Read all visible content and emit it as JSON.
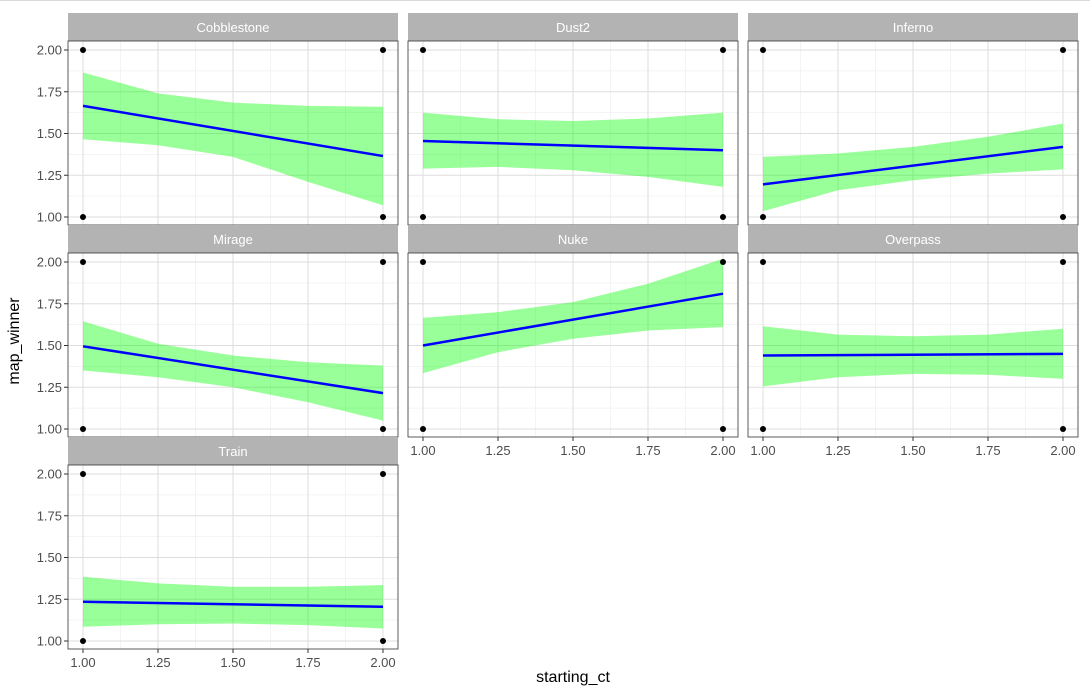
{
  "chart_data": {
    "type": "line",
    "facet_by": "map",
    "xlabel": "starting_ct",
    "ylabel": "map_winner",
    "xlim": [
      1.0,
      2.0
    ],
    "ylim": [
      1.0,
      2.0
    ],
    "x_ticks": [
      "1.00",
      "1.25",
      "1.50",
      "1.75",
      "2.00"
    ],
    "y_ticks": [
      "1.00",
      "1.25",
      "1.50",
      "1.75",
      "2.00"
    ],
    "grid": true,
    "colors": {
      "fit_line": "#0000ff",
      "ribbon": "#00ff00",
      "points": "#000000",
      "strip_bg": "#b3b3b3",
      "strip_text": "#ffffff"
    },
    "panels": [
      {
        "name": "Cobblestone",
        "line": {
          "x": [
            1.0,
            2.0
          ],
          "y": [
            1.665,
            1.365
          ]
        },
        "ribbon": {
          "x": [
            1.0,
            1.25,
            1.5,
            1.75,
            2.0
          ],
          "upper": [
            1.865,
            1.74,
            1.685,
            1.665,
            1.66
          ],
          "lower": [
            1.465,
            1.43,
            1.36,
            1.21,
            1.07
          ]
        },
        "points": [
          [
            1,
            1
          ],
          [
            1,
            2
          ],
          [
            2,
            1
          ],
          [
            2,
            2
          ]
        ]
      },
      {
        "name": "Dust2",
        "line": {
          "x": [
            1.0,
            2.0
          ],
          "y": [
            1.455,
            1.4
          ]
        },
        "ribbon": {
          "x": [
            1.0,
            1.25,
            1.5,
            1.75,
            2.0
          ],
          "upper": [
            1.625,
            1.585,
            1.575,
            1.59,
            1.625
          ],
          "lower": [
            1.29,
            1.3,
            1.28,
            1.24,
            1.18
          ]
        },
        "points": [
          [
            1,
            1
          ],
          [
            1,
            2
          ],
          [
            2,
            1
          ],
          [
            2,
            2
          ]
        ]
      },
      {
        "name": "Inferno",
        "line": {
          "x": [
            1.0,
            2.0
          ],
          "y": [
            1.195,
            1.42
          ]
        },
        "ribbon": {
          "x": [
            1.0,
            1.25,
            1.5,
            1.75,
            2.0
          ],
          "upper": [
            1.36,
            1.38,
            1.42,
            1.48,
            1.56
          ],
          "lower": [
            1.035,
            1.16,
            1.22,
            1.26,
            1.285
          ]
        },
        "points": [
          [
            1,
            1
          ],
          [
            1,
            2
          ],
          [
            2,
            1
          ],
          [
            2,
            2
          ]
        ]
      },
      {
        "name": "Mirage",
        "line": {
          "x": [
            1.0,
            2.0
          ],
          "y": [
            1.495,
            1.215
          ]
        },
        "ribbon": {
          "x": [
            1.0,
            1.25,
            1.5,
            1.75,
            2.0
          ],
          "upper": [
            1.645,
            1.51,
            1.44,
            1.4,
            1.38
          ],
          "lower": [
            1.35,
            1.31,
            1.25,
            1.16,
            1.05
          ]
        },
        "points": [
          [
            1,
            1
          ],
          [
            1,
            2
          ],
          [
            2,
            1
          ],
          [
            2,
            2
          ]
        ]
      },
      {
        "name": "Nuke",
        "line": {
          "x": [
            1.0,
            2.0
          ],
          "y": [
            1.5,
            1.81
          ]
        },
        "ribbon": {
          "x": [
            1.0,
            1.25,
            1.5,
            1.75,
            2.0
          ],
          "upper": [
            1.665,
            1.7,
            1.76,
            1.87,
            2.02
          ],
          "lower": [
            1.335,
            1.46,
            1.54,
            1.59,
            1.61
          ]
        },
        "points": [
          [
            1,
            1
          ],
          [
            1,
            2
          ],
          [
            2,
            1
          ],
          [
            2,
            2
          ]
        ]
      },
      {
        "name": "Overpass",
        "line": {
          "x": [
            1.0,
            2.0
          ],
          "y": [
            1.44,
            1.45
          ]
        },
        "ribbon": {
          "x": [
            1.0,
            1.25,
            1.5,
            1.75,
            2.0
          ],
          "upper": [
            1.615,
            1.565,
            1.555,
            1.565,
            1.6
          ],
          "lower": [
            1.255,
            1.31,
            1.33,
            1.325,
            1.3
          ]
        },
        "points": [
          [
            1,
            1
          ],
          [
            1,
            2
          ],
          [
            2,
            1
          ],
          [
            2,
            2
          ]
        ]
      },
      {
        "name": "Train",
        "line": {
          "x": [
            1.0,
            2.0
          ],
          "y": [
            1.235,
            1.205
          ]
        },
        "ribbon": {
          "x": [
            1.0,
            1.25,
            1.5,
            1.75,
            2.0
          ],
          "upper": [
            1.385,
            1.345,
            1.325,
            1.325,
            1.335
          ],
          "lower": [
            1.085,
            1.1,
            1.105,
            1.095,
            1.075
          ]
        },
        "points": [
          [
            1,
            1
          ],
          [
            1,
            2
          ],
          [
            2,
            1
          ],
          [
            2,
            2
          ]
        ]
      }
    ]
  }
}
